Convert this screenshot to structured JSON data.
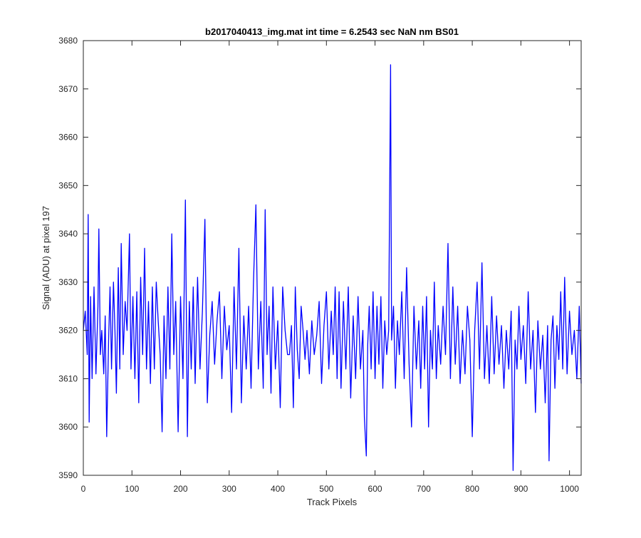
{
  "chart_data": {
    "type": "line",
    "title": "b2017040413_img.mat int time = 6.2543 sec  NaN nm BS01",
    "xlabel": "Track Pixels",
    "ylabel": "Signal (ADU) at pixel 197",
    "xlim": [
      0,
      1024
    ],
    "ylim": [
      3590,
      3680
    ],
    "xticks": [
      0,
      100,
      200,
      300,
      400,
      500,
      600,
      700,
      800,
      900,
      1000
    ],
    "yticks": [
      3590,
      3600,
      3610,
      3620,
      3630,
      3640,
      3650,
      3660,
      3670,
      3680
    ],
    "xtick_labels": [
      "0",
      "100",
      "200",
      "300",
      "400",
      "500",
      "600",
      "700",
      "800",
      "900",
      "1000"
    ],
    "ytick_labels": [
      "3590",
      "3600",
      "3610",
      "3620",
      "3630",
      "3640",
      "3650",
      "3660",
      "3670",
      "3680"
    ],
    "grid": false,
    "box": true,
    "series": [
      {
        "color": "#0000ff",
        "points": [
          [
            0,
            3620
          ],
          [
            4,
            3624
          ],
          [
            8,
            3615
          ],
          [
            10,
            3644
          ],
          [
            12,
            3601
          ],
          [
            15,
            3627
          ],
          [
            18,
            3610
          ],
          [
            22,
            3629
          ],
          [
            26,
            3611
          ],
          [
            30,
            3625
          ],
          [
            32,
            3641
          ],
          [
            35,
            3615
          ],
          [
            38,
            3620
          ],
          [
            42,
            3611
          ],
          [
            45,
            3623
          ],
          [
            48,
            3598
          ],
          [
            52,
            3618
          ],
          [
            55,
            3629
          ],
          [
            58,
            3612
          ],
          [
            62,
            3630
          ],
          [
            65,
            3620
          ],
          [
            68,
            3607
          ],
          [
            72,
            3633
          ],
          [
            75,
            3612
          ],
          [
            78,
            3638
          ],
          [
            82,
            3615
          ],
          [
            86,
            3626
          ],
          [
            90,
            3620
          ],
          [
            95,
            3640
          ],
          [
            98,
            3612
          ],
          [
            102,
            3627
          ],
          [
            106,
            3610
          ],
          [
            110,
            3628
          ],
          [
            114,
            3605
          ],
          [
            118,
            3631
          ],
          [
            122,
            3615
          ],
          [
            126,
            3637
          ],
          [
            130,
            3612
          ],
          [
            134,
            3626
          ],
          [
            138,
            3609
          ],
          [
            142,
            3629
          ],
          [
            146,
            3612
          ],
          [
            150,
            3630
          ],
          [
            154,
            3622
          ],
          [
            158,
            3615
          ],
          [
            162,
            3599
          ],
          [
            166,
            3623
          ],
          [
            170,
            3610
          ],
          [
            174,
            3629
          ],
          [
            178,
            3612
          ],
          [
            182,
            3640
          ],
          [
            186,
            3615
          ],
          [
            190,
            3626
          ],
          [
            195,
            3599
          ],
          [
            200,
            3627
          ],
          [
            205,
            3610
          ],
          [
            210,
            3647
          ],
          [
            214,
            3598
          ],
          [
            218,
            3626
          ],
          [
            222,
            3612
          ],
          [
            226,
            3629
          ],
          [
            230,
            3609
          ],
          [
            235,
            3631
          ],
          [
            240,
            3612
          ],
          [
            245,
            3624
          ],
          [
            250,
            3643
          ],
          [
            255,
            3605
          ],
          [
            260,
            3619
          ],
          [
            265,
            3626
          ],
          [
            270,
            3613
          ],
          [
            275,
            3622
          ],
          [
            280,
            3628
          ],
          [
            285,
            3610
          ],
          [
            290,
            3625
          ],
          [
            295,
            3616
          ],
          [
            300,
            3621
          ],
          [
            305,
            3603
          ],
          [
            310,
            3629
          ],
          [
            315,
            3612
          ],
          [
            320,
            3637
          ],
          [
            325,
            3605
          ],
          [
            330,
            3623
          ],
          [
            335,
            3612
          ],
          [
            340,
            3625
          ],
          [
            345,
            3608
          ],
          [
            350,
            3630
          ],
          [
            355,
            3646
          ],
          [
            360,
            3612
          ],
          [
            365,
            3626
          ],
          [
            370,
            3608
          ],
          [
            374,
            3645
          ],
          [
            378,
            3615
          ],
          [
            382,
            3625
          ],
          [
            386,
            3607
          ],
          [
            390,
            3629
          ],
          [
            395,
            3612
          ],
          [
            400,
            3622
          ],
          [
            405,
            3604
          ],
          [
            410,
            3629
          ],
          [
            415,
            3620
          ],
          [
            420,
            3615
          ],
          [
            424,
            3615
          ],
          [
            428,
            3621
          ],
          [
            432,
            3604
          ],
          [
            436,
            3629
          ],
          [
            440,
            3616
          ],
          [
            444,
            3610
          ],
          [
            448,
            3625
          ],
          [
            452,
            3620
          ],
          [
            456,
            3614
          ],
          [
            460,
            3620
          ],
          [
            465,
            3611
          ],
          [
            470,
            3622
          ],
          [
            475,
            3615
          ],
          [
            480,
            3619
          ],
          [
            485,
            3626
          ],
          [
            490,
            3609
          ],
          [
            495,
            3621
          ],
          [
            500,
            3628
          ],
          [
            505,
            3612
          ],
          [
            510,
            3624
          ],
          [
            514,
            3615
          ],
          [
            518,
            3629
          ],
          [
            522,
            3610
          ],
          [
            526,
            3628
          ],
          [
            530,
            3608
          ],
          [
            535,
            3626
          ],
          [
            540,
            3612
          ],
          [
            545,
            3629
          ],
          [
            550,
            3606
          ],
          [
            555,
            3623
          ],
          [
            560,
            3610
          ],
          [
            565,
            3627
          ],
          [
            570,
            3612
          ],
          [
            575,
            3620
          ],
          [
            578,
            3602
          ],
          [
            582,
            3594
          ],
          [
            585,
            3617
          ],
          [
            588,
            3625
          ],
          [
            592,
            3612
          ],
          [
            596,
            3628
          ],
          [
            600,
            3610
          ],
          [
            604,
            3625
          ],
          [
            608,
            3613
          ],
          [
            612,
            3627
          ],
          [
            616,
            3608
          ],
          [
            620,
            3622
          ],
          [
            624,
            3615
          ],
          [
            628,
            3620
          ],
          [
            632,
            3675
          ],
          [
            634,
            3618
          ],
          [
            638,
            3625
          ],
          [
            642,
            3608
          ],
          [
            646,
            3622
          ],
          [
            650,
            3615
          ],
          [
            655,
            3628
          ],
          [
            660,
            3610
          ],
          [
            665,
            3633
          ],
          [
            670,
            3613
          ],
          [
            675,
            3600
          ],
          [
            680,
            3625
          ],
          [
            685,
            3612
          ],
          [
            690,
            3622
          ],
          [
            694,
            3608
          ],
          [
            698,
            3625
          ],
          [
            702,
            3612
          ],
          [
            706,
            3627
          ],
          [
            710,
            3600
          ],
          [
            714,
            3620
          ],
          [
            718,
            3612
          ],
          [
            722,
            3630
          ],
          [
            726,
            3610
          ],
          [
            730,
            3621
          ],
          [
            735,
            3613
          ],
          [
            740,
            3625
          ],
          [
            745,
            3615
          ],
          [
            750,
            3638
          ],
          [
            755,
            3610
          ],
          [
            760,
            3629
          ],
          [
            765,
            3613
          ],
          [
            770,
            3625
          ],
          [
            775,
            3609
          ],
          [
            780,
            3620
          ],
          [
            785,
            3611
          ],
          [
            790,
            3625
          ],
          [
            795,
            3618
          ],
          [
            800,
            3598
          ],
          [
            805,
            3620
          ],
          [
            810,
            3630
          ],
          [
            815,
            3612
          ],
          [
            820,
            3634
          ],
          [
            825,
            3610
          ],
          [
            830,
            3621
          ],
          [
            835,
            3609
          ],
          [
            840,
            3627
          ],
          [
            845,
            3611
          ],
          [
            850,
            3623
          ],
          [
            855,
            3613
          ],
          [
            860,
            3621
          ],
          [
            865,
            3608
          ],
          [
            870,
            3620
          ],
          [
            875,
            3612
          ],
          [
            880,
            3624
          ],
          [
            884,
            3591
          ],
          [
            888,
            3618
          ],
          [
            892,
            3612
          ],
          [
            896,
            3625
          ],
          [
            900,
            3614
          ],
          [
            905,
            3621
          ],
          [
            910,
            3609
          ],
          [
            915,
            3628
          ],
          [
            920,
            3612
          ],
          [
            925,
            3620
          ],
          [
            930,
            3603
          ],
          [
            935,
            3622
          ],
          [
            940,
            3612
          ],
          [
            945,
            3619
          ],
          [
            950,
            3605
          ],
          [
            955,
            3621
          ],
          [
            958,
            3593
          ],
          [
            962,
            3618
          ],
          [
            966,
            3623
          ],
          [
            970,
            3608
          ],
          [
            974,
            3621
          ],
          [
            978,
            3614
          ],
          [
            982,
            3628
          ],
          [
            986,
            3612
          ],
          [
            990,
            3631
          ],
          [
            995,
            3611
          ],
          [
            1000,
            3624
          ],
          [
            1005,
            3615
          ],
          [
            1010,
            3620
          ],
          [
            1015,
            3610
          ],
          [
            1020,
            3625
          ],
          [
            1024,
            3609
          ]
        ]
      }
    ]
  }
}
